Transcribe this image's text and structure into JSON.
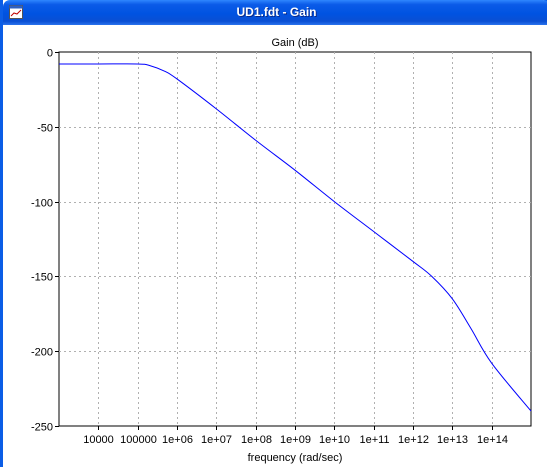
{
  "window": {
    "title": "UD1.fdt - Gain"
  },
  "chart_data": {
    "type": "line",
    "title": "Gain (dB)",
    "xlabel": "frequency (rad/sec)",
    "ylabel": "",
    "x_scale": "log",
    "xlim": [
      1000,
      1000000000000000
    ],
    "ylim": [
      -250,
      0
    ],
    "grid": true,
    "x_ticks": [
      10000,
      100000,
      1000000,
      10000000,
      100000000,
      1000000000,
      10000000000,
      100000000000,
      1000000000000,
      10000000000000,
      100000000000000
    ],
    "x_tick_labels": [
      "10000",
      "100000",
      "1e+06",
      "1e+07",
      "1e+08",
      "1e+09",
      "1e+10",
      "1e+11",
      "1e+12",
      "1e+13",
      "1e+14"
    ],
    "y_ticks": [
      0,
      -50,
      -100,
      -150,
      -200,
      -250
    ],
    "y_tick_labels": [
      "0",
      "-50",
      "-100",
      "-150",
      "-200",
      "-250"
    ],
    "series": [
      {
        "color": "#0000ff",
        "x": [
          1000,
          10000,
          100000,
          200000,
          500000,
          1000000,
          10000000,
          100000000,
          1000000000,
          10000000000,
          100000000000,
          1000000000000,
          3000000000000,
          10000000000000,
          30000000000000,
          100000000000000,
          1000000000000000
        ],
        "y": [
          -8,
          -8,
          -8,
          -9,
          -13,
          -18,
          -38,
          -59,
          -79,
          -100,
          -120,
          -140,
          -150,
          -165,
          -185,
          -208,
          -240
        ]
      }
    ]
  }
}
